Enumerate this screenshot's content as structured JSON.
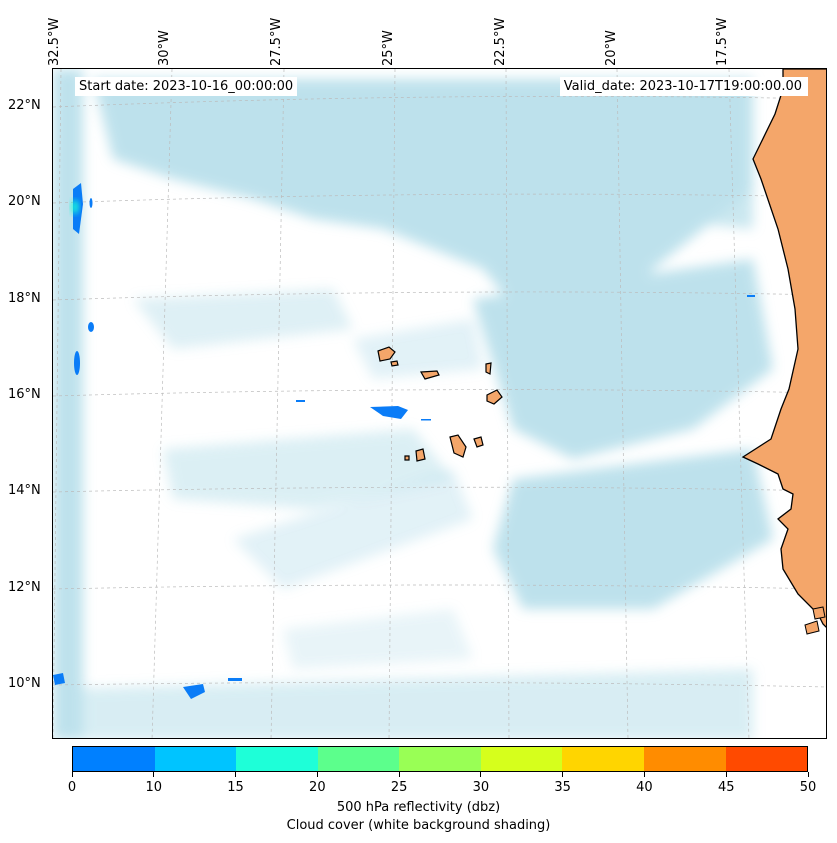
{
  "map": {
    "start_date": "Start date: 2023-10-16_00:00:00",
    "valid_date": "Valid_date: 2023-10-17T19:00:00.00",
    "lon_labels": [
      "32.5°W",
      "30°W",
      "27.5°W",
      "25°W",
      "22.5°W",
      "20°W",
      "17.5°W"
    ],
    "lat_labels": [
      "22°N",
      "20°N",
      "18°N",
      "16°N",
      "14°N",
      "12°N",
      "10°N"
    ],
    "land_color": "#f4a66a",
    "cloud_color": "#a8d8e6",
    "reflectivity_color": "#0a7cf7"
  },
  "colorbar": {
    "ticks": [
      "0",
      "10",
      "15",
      "20",
      "25",
      "30",
      "35",
      "40",
      "45",
      "50"
    ],
    "colors": [
      "#0080ff",
      "#00c4ff",
      "#1effd8",
      "#5cff8c",
      "#99ff55",
      "#d6ff1c",
      "#ffd500",
      "#ff8c00",
      "#ff4a00"
    ],
    "label": "500 hPa reflectivity (dbz)",
    "sublabel": "Cloud cover (white background shading)"
  }
}
